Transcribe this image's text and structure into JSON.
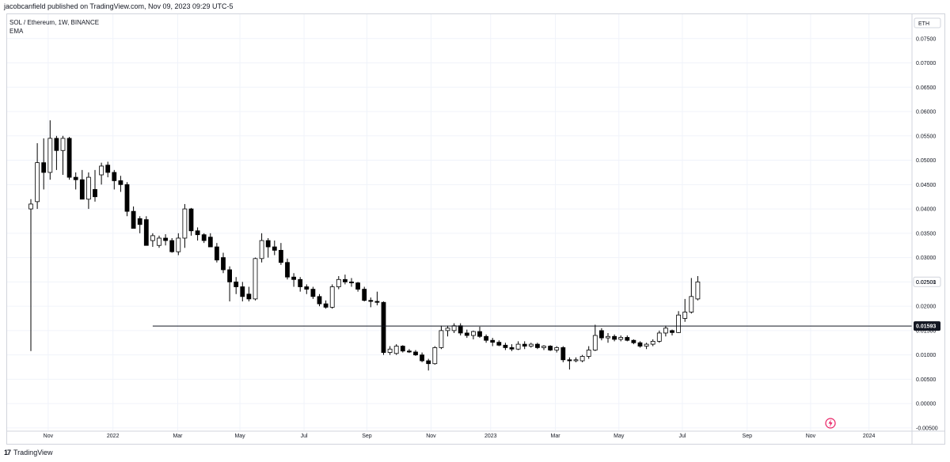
{
  "header": {
    "published": "jacobcanfield published on TradingView.com, Nov 09, 2023 09:29 UTC-5"
  },
  "legend": {
    "symbol": "SOL / Ethereum, 1W, BINANCE",
    "indicator": "EMA"
  },
  "footer": {
    "logo_mark": "17",
    "brand": "TradingView"
  },
  "colors": {
    "up_body": "#ffffff",
    "down_body": "#000000",
    "wick": "#000000",
    "grid": "#f0f3fa",
    "axis_border": "#d1d4dc",
    "level_line": "#131722",
    "accent_icon": "#e91e63"
  },
  "chart_data": {
    "type": "candlestick",
    "symbol": "SOL / Ethereum",
    "interval": "1W",
    "exchange": "BINANCE",
    "currency_label": "ETH",
    "ylim": [
      -0.0055,
      0.08
    ],
    "y_ticks": [
      "0.07500",
      "0.07000",
      "0.06500",
      "0.06000",
      "0.05500",
      "0.05000",
      "0.04500",
      "0.04000",
      "0.03500",
      "0.03000",
      "0.02500",
      "0.02000",
      "0.01500",
      "0.01000",
      "0.00500",
      "0.00000",
      "-0.00500"
    ],
    "x_ticks": [
      "Nov",
      "2022",
      "Mar",
      "May",
      "Jul",
      "Sep",
      "Nov",
      "2023",
      "Mar",
      "May",
      "Jul",
      "Sep",
      "Nov",
      "2024"
    ],
    "x_tick_index": [
      2.7,
      12.8,
      22.9,
      32.6,
      42.6,
      52.4,
      62.4,
      71.7,
      81.8,
      91.7,
      101.6,
      111.7,
      121.6,
      130.7
    ],
    "last_price_label": "0.02501",
    "horizontal_line": {
      "value": 0.01593,
      "label": "0.01593",
      "start_index": 19
    },
    "candles": [
      {
        "o": 0.04,
        "h": 0.042,
        "l": 0.0108,
        "c": 0.041
      },
      {
        "o": 0.0415,
        "h": 0.0535,
        "l": 0.04,
        "c": 0.0495
      },
      {
        "o": 0.0495,
        "h": 0.0545,
        "l": 0.044,
        "c": 0.0475
      },
      {
        "o": 0.0475,
        "h": 0.0582,
        "l": 0.046,
        "c": 0.0545
      },
      {
        "o": 0.0545,
        "h": 0.055,
        "l": 0.048,
        "c": 0.052
      },
      {
        "o": 0.052,
        "h": 0.055,
        "l": 0.047,
        "c": 0.0545
      },
      {
        "o": 0.0545,
        "h": 0.0548,
        "l": 0.046,
        "c": 0.0465
      },
      {
        "o": 0.0465,
        "h": 0.0475,
        "l": 0.044,
        "c": 0.046
      },
      {
        "o": 0.046,
        "h": 0.048,
        "l": 0.042,
        "c": 0.042
      },
      {
        "o": 0.042,
        "h": 0.0475,
        "l": 0.04,
        "c": 0.0465
      },
      {
        "o": 0.044,
        "h": 0.048,
        "l": 0.0415,
        "c": 0.0425
      },
      {
        "o": 0.047,
        "h": 0.0495,
        "l": 0.045,
        "c": 0.0488
      },
      {
        "o": 0.049,
        "h": 0.0497,
        "l": 0.0465,
        "c": 0.0475
      },
      {
        "o": 0.0475,
        "h": 0.048,
        "l": 0.044,
        "c": 0.0458
      },
      {
        "o": 0.0458,
        "h": 0.0468,
        "l": 0.0435,
        "c": 0.045
      },
      {
        "o": 0.045,
        "h": 0.0455,
        "l": 0.0385,
        "c": 0.0395
      },
      {
        "o": 0.0395,
        "h": 0.0405,
        "l": 0.036,
        "c": 0.036
      },
      {
        "o": 0.038,
        "h": 0.0385,
        "l": 0.035,
        "c": 0.0368
      },
      {
        "o": 0.0378,
        "h": 0.0385,
        "l": 0.0325,
        "c": 0.0325
      },
      {
        "o": 0.0335,
        "h": 0.035,
        "l": 0.0322,
        "c": 0.0345
      },
      {
        "o": 0.0325,
        "h": 0.0345,
        "l": 0.032,
        "c": 0.034
      },
      {
        "o": 0.034,
        "h": 0.0348,
        "l": 0.0325,
        "c": 0.0335
      },
      {
        "o": 0.0335,
        "h": 0.034,
        "l": 0.031,
        "c": 0.0312
      },
      {
        "o": 0.0312,
        "h": 0.035,
        "l": 0.0305,
        "c": 0.034
      },
      {
        "o": 0.034,
        "h": 0.041,
        "l": 0.032,
        "c": 0.04
      },
      {
        "o": 0.04,
        "h": 0.0402,
        "l": 0.0345,
        "c": 0.0355
      },
      {
        "o": 0.0355,
        "h": 0.0362,
        "l": 0.0335,
        "c": 0.0347
      },
      {
        "o": 0.0347,
        "h": 0.035,
        "l": 0.033,
        "c": 0.0335
      },
      {
        "o": 0.0342,
        "h": 0.035,
        "l": 0.0322,
        "c": 0.0322
      },
      {
        "o": 0.0322,
        "h": 0.033,
        "l": 0.029,
        "c": 0.0295
      },
      {
        "o": 0.03,
        "h": 0.031,
        "l": 0.0268,
        "c": 0.0275
      },
      {
        "o": 0.0275,
        "h": 0.0282,
        "l": 0.021,
        "c": 0.025
      },
      {
        "o": 0.025,
        "h": 0.026,
        "l": 0.0225,
        "c": 0.024
      },
      {
        "o": 0.024,
        "h": 0.025,
        "l": 0.021,
        "c": 0.022
      },
      {
        "o": 0.0225,
        "h": 0.024,
        "l": 0.021,
        "c": 0.0215
      },
      {
        "o": 0.0215,
        "h": 0.03,
        "l": 0.0212,
        "c": 0.0298
      },
      {
        "o": 0.0298,
        "h": 0.035,
        "l": 0.029,
        "c": 0.0335
      },
      {
        "o": 0.0335,
        "h": 0.034,
        "l": 0.03,
        "c": 0.0322
      },
      {
        "o": 0.0322,
        "h": 0.0335,
        "l": 0.0305,
        "c": 0.0315
      },
      {
        "o": 0.0315,
        "h": 0.033,
        "l": 0.0285,
        "c": 0.029
      },
      {
        "o": 0.029,
        "h": 0.0298,
        "l": 0.0255,
        "c": 0.026
      },
      {
        "o": 0.026,
        "h": 0.0268,
        "l": 0.024,
        "c": 0.0255
      },
      {
        "o": 0.0255,
        "h": 0.026,
        "l": 0.023,
        "c": 0.024
      },
      {
        "o": 0.024,
        "h": 0.0245,
        "l": 0.0225,
        "c": 0.0235
      },
      {
        "o": 0.0235,
        "h": 0.024,
        "l": 0.0215,
        "c": 0.022
      },
      {
        "o": 0.022,
        "h": 0.0225,
        "l": 0.02,
        "c": 0.0205
      },
      {
        "o": 0.0205,
        "h": 0.0212,
        "l": 0.0195,
        "c": 0.0198
      },
      {
        "o": 0.0198,
        "h": 0.0245,
        "l": 0.0195,
        "c": 0.024
      },
      {
        "o": 0.024,
        "h": 0.0262,
        "l": 0.0235,
        "c": 0.0255
      },
      {
        "o": 0.0255,
        "h": 0.0265,
        "l": 0.0245,
        "c": 0.025
      },
      {
        "o": 0.025,
        "h": 0.0258,
        "l": 0.024,
        "c": 0.0248
      },
      {
        "o": 0.0248,
        "h": 0.025,
        "l": 0.023,
        "c": 0.0235
      },
      {
        "o": 0.0235,
        "h": 0.024,
        "l": 0.021,
        "c": 0.0212
      },
      {
        "o": 0.0212,
        "h": 0.0218,
        "l": 0.0198,
        "c": 0.021
      },
      {
        "o": 0.021,
        "h": 0.023,
        "l": 0.0202,
        "c": 0.0208
      },
      {
        "o": 0.0208,
        "h": 0.021,
        "l": 0.01,
        "c": 0.0105
      },
      {
        "o": 0.0105,
        "h": 0.0118,
        "l": 0.01,
        "c": 0.0112
      },
      {
        "o": 0.0103,
        "h": 0.0122,
        "l": 0.01,
        "c": 0.0118
      },
      {
        "o": 0.0118,
        "h": 0.012,
        "l": 0.0105,
        "c": 0.0108
      },
      {
        "o": 0.0108,
        "h": 0.0112,
        "l": 0.0104,
        "c": 0.0106
      },
      {
        "o": 0.0106,
        "h": 0.011,
        "l": 0.0098,
        "c": 0.01
      },
      {
        "o": 0.01,
        "h": 0.0105,
        "l": 0.0085,
        "c": 0.0088
      },
      {
        "o": 0.0088,
        "h": 0.0092,
        "l": 0.0068,
        "c": 0.0082
      },
      {
        "o": 0.0082,
        "h": 0.0118,
        "l": 0.008,
        "c": 0.0115
      },
      {
        "o": 0.0115,
        "h": 0.016,
        "l": 0.0112,
        "c": 0.015
      },
      {
        "o": 0.015,
        "h": 0.016,
        "l": 0.0138,
        "c": 0.0155
      },
      {
        "o": 0.015,
        "h": 0.0165,
        "l": 0.0145,
        "c": 0.016
      },
      {
        "o": 0.016,
        "h": 0.0165,
        "l": 0.014,
        "c": 0.0145
      },
      {
        "o": 0.0145,
        "h": 0.0152,
        "l": 0.0135,
        "c": 0.014
      },
      {
        "o": 0.014,
        "h": 0.015,
        "l": 0.0132,
        "c": 0.0148
      },
      {
        "o": 0.0148,
        "h": 0.0158,
        "l": 0.0135,
        "c": 0.0138
      },
      {
        "o": 0.0138,
        "h": 0.0142,
        "l": 0.0125,
        "c": 0.013
      },
      {
        "o": 0.013,
        "h": 0.0135,
        "l": 0.0118,
        "c": 0.0126
      },
      {
        "o": 0.0126,
        "h": 0.013,
        "l": 0.0118,
        "c": 0.012
      },
      {
        "o": 0.012,
        "h": 0.0125,
        "l": 0.011,
        "c": 0.0115
      },
      {
        "o": 0.0115,
        "h": 0.0122,
        "l": 0.0108,
        "c": 0.0112
      },
      {
        "o": 0.0112,
        "h": 0.0128,
        "l": 0.011,
        "c": 0.0122
      },
      {
        "o": 0.0122,
        "h": 0.0128,
        "l": 0.0112,
        "c": 0.0118
      },
      {
        "o": 0.0118,
        "h": 0.0125,
        "l": 0.0115,
        "c": 0.0122
      },
      {
        "o": 0.0122,
        "h": 0.0125,
        "l": 0.0112,
        "c": 0.0115
      },
      {
        "o": 0.0115,
        "h": 0.012,
        "l": 0.011,
        "c": 0.0118
      },
      {
        "o": 0.0118,
        "h": 0.012,
        "l": 0.0108,
        "c": 0.011
      },
      {
        "o": 0.011,
        "h": 0.0118,
        "l": 0.0105,
        "c": 0.0115
      },
      {
        "o": 0.0115,
        "h": 0.0118,
        "l": 0.0085,
        "c": 0.009
      },
      {
        "o": 0.009,
        "h": 0.0095,
        "l": 0.007,
        "c": 0.0088
      },
      {
        "o": 0.0088,
        "h": 0.0095,
        "l": 0.0085,
        "c": 0.009
      },
      {
        "o": 0.0088,
        "h": 0.01,
        "l": 0.0085,
        "c": 0.0097
      },
      {
        "o": 0.0097,
        "h": 0.0118,
        "l": 0.0092,
        "c": 0.011
      },
      {
        "o": 0.011,
        "h": 0.0162,
        "l": 0.0108,
        "c": 0.014
      },
      {
        "o": 0.015,
        "h": 0.0155,
        "l": 0.013,
        "c": 0.0135
      },
      {
        "o": 0.0135,
        "h": 0.0145,
        "l": 0.0125,
        "c": 0.0138
      },
      {
        "o": 0.0138,
        "h": 0.0142,
        "l": 0.0128,
        "c": 0.0132
      },
      {
        "o": 0.0132,
        "h": 0.014,
        "l": 0.0128,
        "c": 0.0136
      },
      {
        "o": 0.0136,
        "h": 0.014,
        "l": 0.0128,
        "c": 0.013
      },
      {
        "o": 0.013,
        "h": 0.0132,
        "l": 0.0122,
        "c": 0.0125
      },
      {
        "o": 0.0125,
        "h": 0.0128,
        "l": 0.0115,
        "c": 0.0118
      },
      {
        "o": 0.0118,
        "h": 0.0125,
        "l": 0.0112,
        "c": 0.0122
      },
      {
        "o": 0.0122,
        "h": 0.0132,
        "l": 0.0118,
        "c": 0.0128
      },
      {
        "o": 0.0128,
        "h": 0.015,
        "l": 0.0125,
        "c": 0.0145
      },
      {
        "o": 0.0145,
        "h": 0.016,
        "l": 0.0138,
        "c": 0.0155
      },
      {
        "o": 0.015,
        "h": 0.0152,
        "l": 0.014,
        "c": 0.0146
      },
      {
        "o": 0.0146,
        "h": 0.019,
        "l": 0.0145,
        "c": 0.0182
      },
      {
        "o": 0.0175,
        "h": 0.0215,
        "l": 0.0168,
        "c": 0.0188
      },
      {
        "o": 0.0188,
        "h": 0.0258,
        "l": 0.0185,
        "c": 0.022
      },
      {
        "o": 0.0215,
        "h": 0.0262,
        "l": 0.0212,
        "c": 0.025
      }
    ]
  }
}
